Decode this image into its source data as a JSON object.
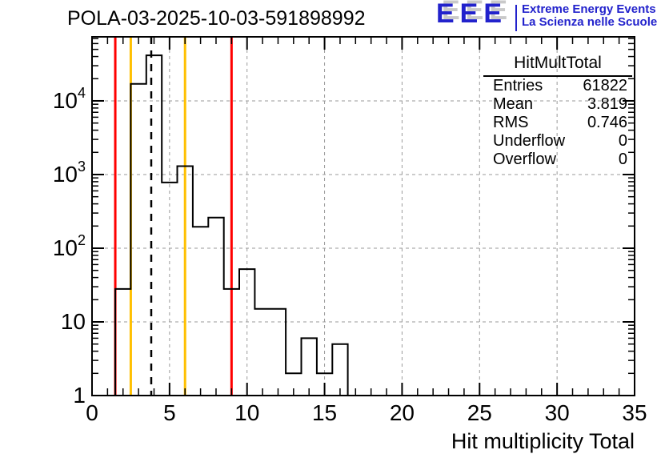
{
  "title": "POLA-03-2025-10-03-591898992",
  "logo": {
    "acronym": "EEE",
    "line1": "Extreme Energy Events",
    "line2": "La Scienza nelle Scuole",
    "color": "#2222cc"
  },
  "stats": {
    "title": "HitMultTotal",
    "rows": [
      {
        "label": "Entries",
        "value": "61822"
      },
      {
        "label": "Mean",
        "value": "3.819"
      },
      {
        "label": "RMS",
        "value": "0.746"
      },
      {
        "label": "Underflow",
        "value": "0"
      },
      {
        "label": "Overflow",
        "value": "0"
      }
    ]
  },
  "chart_data": {
    "type": "bar",
    "subtype": "step-histogram-log-y",
    "title": "POLA-03-2025-10-03-591898992",
    "xlabel": "Hit multiplicity Total",
    "ylabel": "",
    "x_range": [
      0,
      35
    ],
    "y_scale": "log",
    "y_range": [
      1,
      74000
    ],
    "x_ticks": [
      0,
      5,
      10,
      15,
      20,
      25,
      30,
      35
    ],
    "x_minor_step": 1,
    "y_ticks": [
      1,
      10,
      100,
      1000,
      10000
    ],
    "grid": true,
    "grid_color": "#9a9a9a",
    "bin_start": 1.5,
    "bin_width": 1,
    "bin_centers": [
      2,
      3,
      4,
      5,
      6,
      7,
      8,
      9,
      10,
      11,
      12,
      13,
      14,
      15,
      16
    ],
    "counts": [
      28,
      17000,
      41500,
      780,
      1300,
      195,
      260,
      28,
      52,
      15,
      15,
      2,
      6,
      2,
      5
    ],
    "hist_color": "#000000",
    "marker_lines": [
      {
        "x": 1.5,
        "color": "#ff0000",
        "style": "solid"
      },
      {
        "x": 2.5,
        "color": "#ffc000",
        "style": "solid"
      },
      {
        "x": 6,
        "color": "#ffc000",
        "style": "solid"
      },
      {
        "x": 9,
        "color": "#ff0000",
        "style": "solid"
      },
      {
        "x": 3.819,
        "color": "#000000",
        "style": "dashed"
      }
    ]
  }
}
